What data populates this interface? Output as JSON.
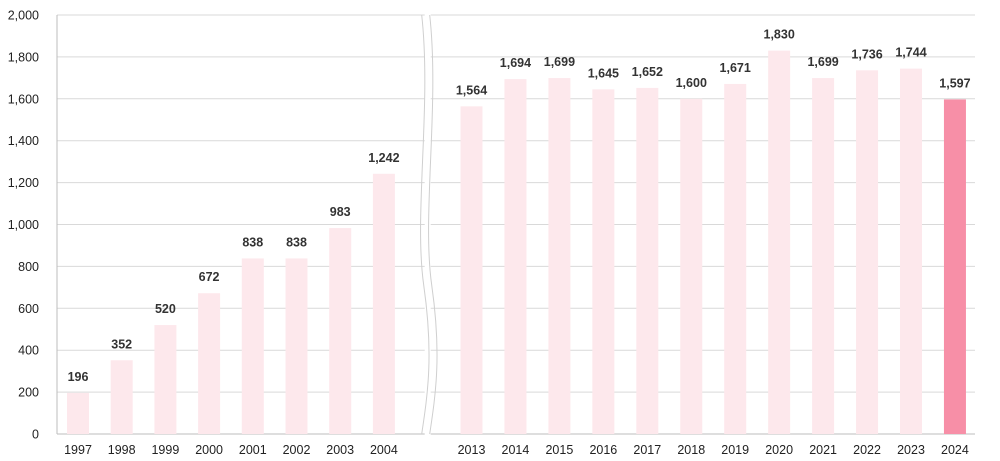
{
  "chart_data": {
    "type": "bar",
    "title": "",
    "xlabel": "",
    "ylabel": "",
    "ylim": [
      0,
      2000
    ],
    "yticks": [
      "0",
      "200",
      "400",
      "600",
      "800",
      "1,000",
      "1,200",
      "1,400",
      "1,600",
      "1,800",
      "2,000"
    ],
    "grid": true,
    "axis_break_after": "2004",
    "categories": [
      "1997",
      "1998",
      "1999",
      "2000",
      "2001",
      "2002",
      "2003",
      "2004",
      "2013",
      "2014",
      "2015",
      "2016",
      "2017",
      "2018",
      "2019",
      "2020",
      "2021",
      "2022",
      "2023",
      "2024"
    ],
    "values": [
      196,
      352,
      520,
      672,
      838,
      838,
      983,
      1242,
      1564,
      1694,
      1699,
      1645,
      1652,
      1600,
      1671,
      1830,
      1699,
      1736,
      1744,
      1597
    ],
    "value_labels": [
      "196",
      "352",
      "520",
      "672",
      "838",
      "838",
      "983",
      "1,242",
      "1,564",
      "1,694",
      "1,699",
      "1,645",
      "1,652",
      "1,600",
      "1,671",
      "1,830",
      "1,699",
      "1,736",
      "1,744",
      "1,597"
    ],
    "highlight_category": "2024",
    "colors": {
      "bar": "#fde8ec",
      "highlight": "#f78fa7",
      "grid": "#d9d9d9"
    }
  }
}
